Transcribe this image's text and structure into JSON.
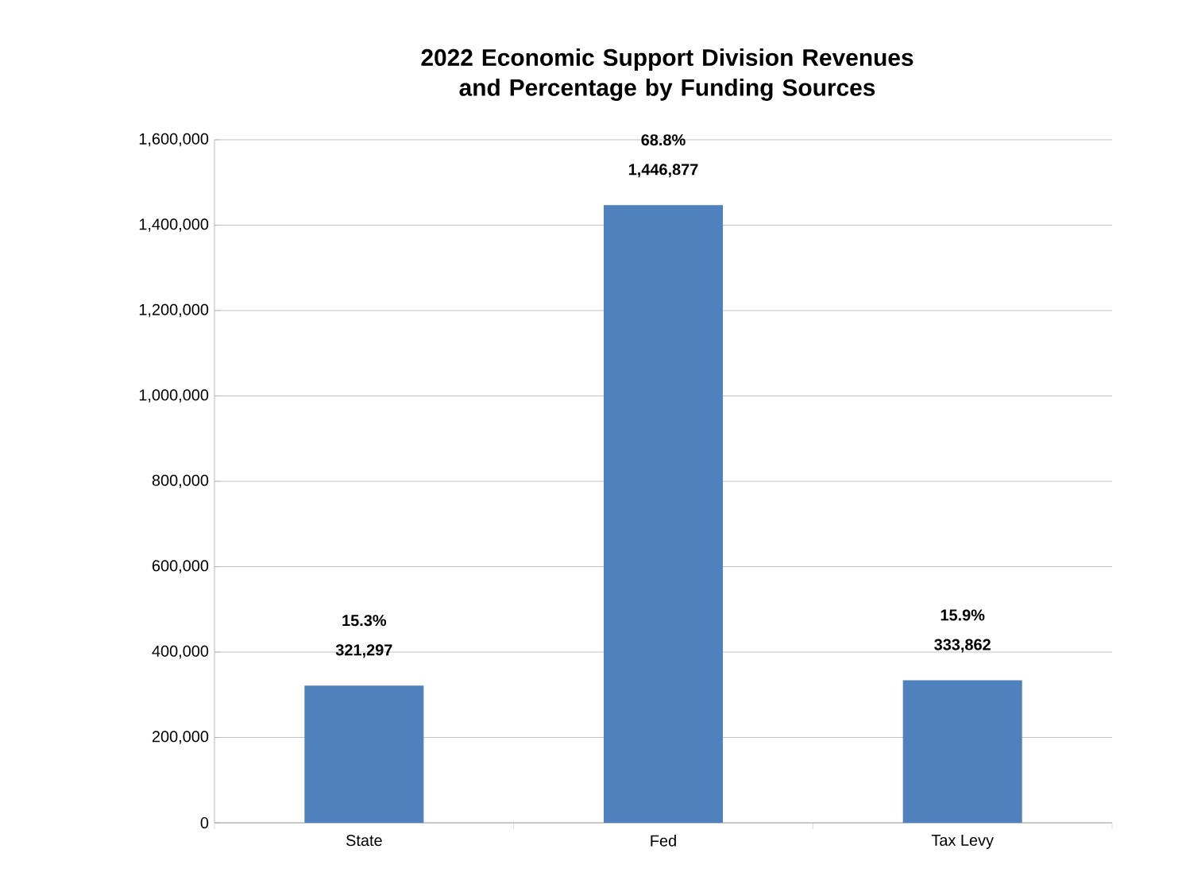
{
  "chart_data": {
    "type": "bar",
    "title": "2022 Economic Support Division Revenues and Percentage by Funding Sources",
    "categories": [
      "State",
      "Fed",
      "Tax Levy"
    ],
    "values": [
      321297,
      1446877,
      333862
    ],
    "color": "#4f81bd",
    "value_labels": [
      "321,297",
      "1,446,877",
      "333,862"
    ],
    "annotations": [
      "15.3%",
      "68.8%",
      "15.9%"
    ],
    "ylim": [
      0,
      1600000
    ],
    "yticks": [
      0,
      {
        "value": 200000,
        "label": "200,000"
      },
      {
        "value": 400000,
        "label": "400,000"
      },
      {
        "value": 600000,
        "label": "600,000"
      },
      {
        "value": 800000,
        "label": "800,000"
      },
      {
        "value": 1000000,
        "label": "1,000,000"
      },
      {
        "value": 1200000,
        "label": "1,200,000"
      },
      {
        "value": 1400000,
        "label": "1,400,000"
      },
      {
        "value": 1600000,
        "label": "1,600,000"
      }
    ],
    "grid": "y"
  }
}
